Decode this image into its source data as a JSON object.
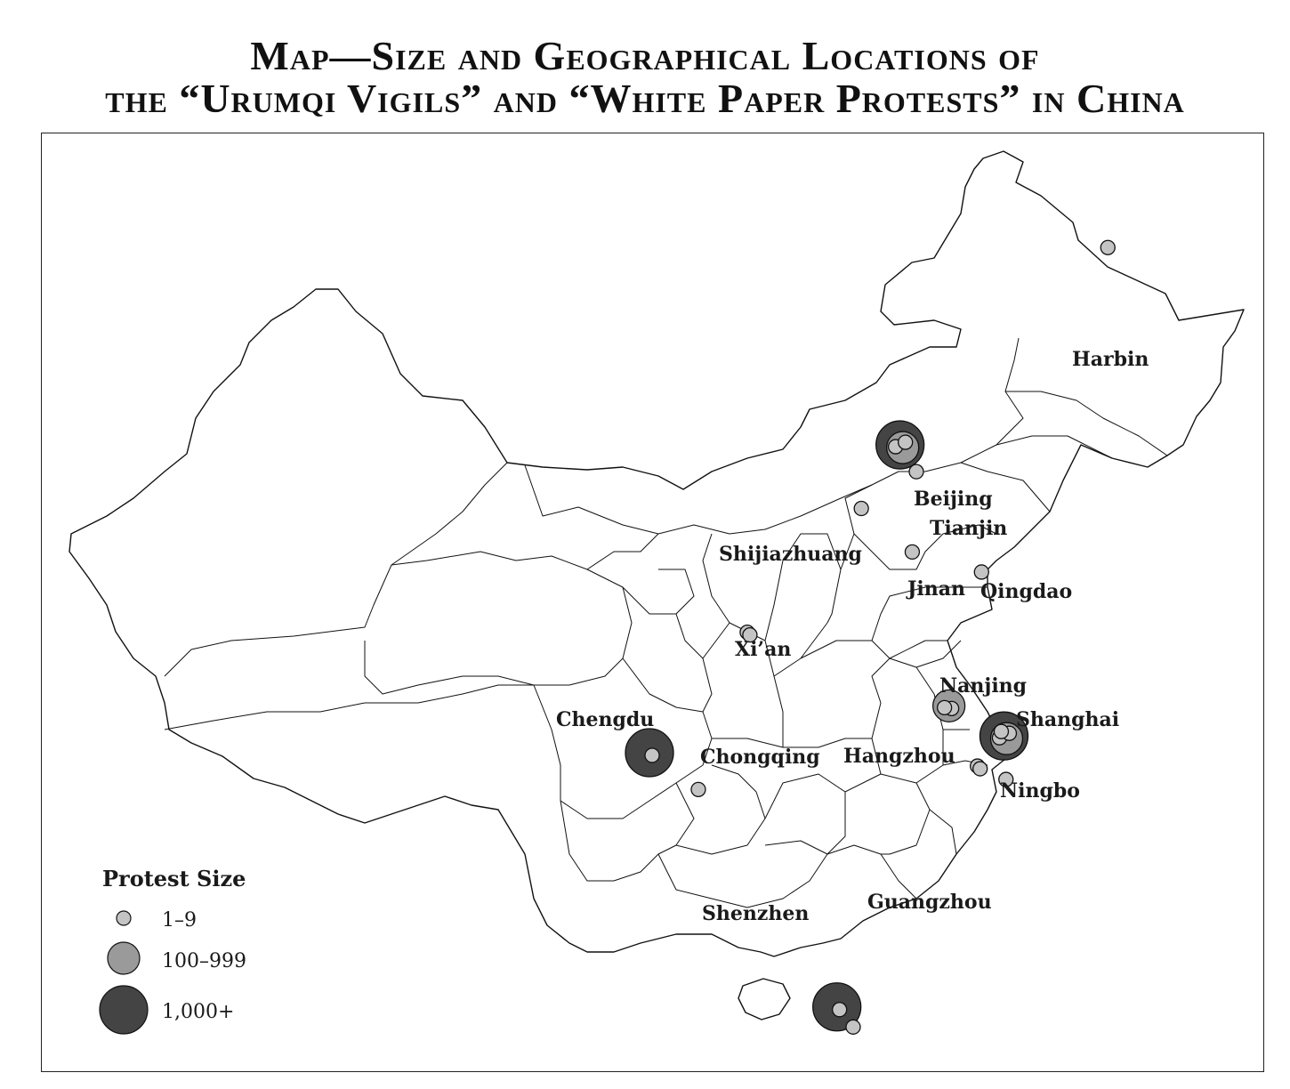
{
  "title": {
    "line1": "Map—Size and Geographical Locations of",
    "line2": "the “Urumqi Vigils” and “White Paper Protests” in China"
  },
  "colors": {
    "small": "#c4c4c4",
    "medium": "#9a9a9a",
    "large": "#444444",
    "stroke": "#111111"
  },
  "legend": {
    "title": "Protest Size",
    "items": [
      {
        "label": "1–9",
        "size": "small"
      },
      {
        "label": "100–999",
        "size": "medium"
      },
      {
        "label": "1,000+",
        "size": "large"
      }
    ]
  },
  "cities": [
    {
      "name": "Harbin",
      "lon": 126.6,
      "lat": 45.8,
      "protests": [
        "small"
      ]
    },
    {
      "name": "Beijing",
      "lon": 116.4,
      "lat": 39.9,
      "protests": [
        "large",
        "medium",
        "small",
        "small"
      ]
    },
    {
      "name": "Tianjin",
      "lon": 117.2,
      "lat": 39.1,
      "protests": [
        "small"
      ]
    },
    {
      "name": "Shijiazhuang",
      "lon": 114.5,
      "lat": 38.0,
      "protests": [
        "small"
      ]
    },
    {
      "name": "Jinan",
      "lon": 117.0,
      "lat": 36.7,
      "protests": [
        "small"
      ]
    },
    {
      "name": "Qingdao",
      "lon": 120.4,
      "lat": 36.1,
      "protests": [
        "small"
      ]
    },
    {
      "name": "Xi’an",
      "lon": 108.9,
      "lat": 34.3,
      "protests": [
        "small",
        "small"
      ]
    },
    {
      "name": "Nanjing",
      "lon": 118.8,
      "lat": 32.1,
      "protests": [
        "medium",
        "small",
        "small"
      ]
    },
    {
      "name": "Shanghai",
      "lon": 121.5,
      "lat": 31.2,
      "protests": [
        "large",
        "medium",
        "small",
        "small",
        "small"
      ]
    },
    {
      "name": "Chengdu",
      "lon": 104.1,
      "lat": 30.7,
      "protests": [
        "large",
        "small"
      ]
    },
    {
      "name": "Chongqing",
      "lon": 106.5,
      "lat": 29.6,
      "protests": [
        "small"
      ]
    },
    {
      "name": "Hangzhou",
      "lon": 120.2,
      "lat": 30.3,
      "protests": [
        "small",
        "small"
      ]
    },
    {
      "name": "Ningbo",
      "lon": 121.6,
      "lat": 29.9,
      "protests": [
        "small"
      ]
    },
    {
      "name": "Guangzhou",
      "lon": 113.3,
      "lat": 23.1,
      "protests": [
        "large",
        "small"
      ]
    },
    {
      "name": "Shenzhen",
      "lon": 114.1,
      "lat": 22.5,
      "protests": [
        "small"
      ]
    }
  ]
}
